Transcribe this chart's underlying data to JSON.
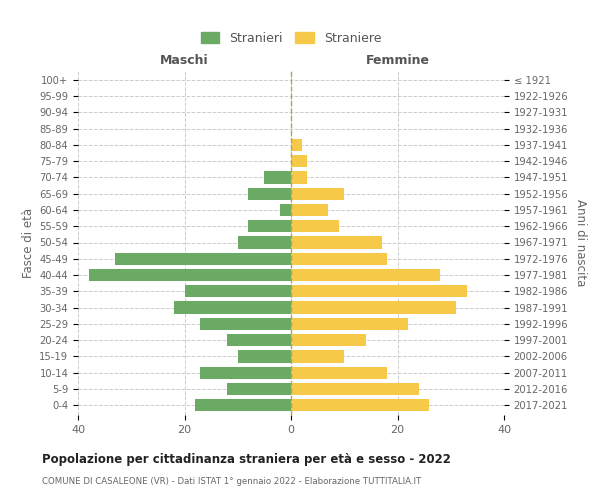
{
  "age_groups": [
    "100+",
    "95-99",
    "90-94",
    "85-89",
    "80-84",
    "75-79",
    "70-74",
    "65-69",
    "60-64",
    "55-59",
    "50-54",
    "45-49",
    "40-44",
    "35-39",
    "30-34",
    "25-29",
    "20-24",
    "15-19",
    "10-14",
    "5-9",
    "0-4"
  ],
  "birth_years": [
    "≤ 1921",
    "1922-1926",
    "1927-1931",
    "1932-1936",
    "1937-1941",
    "1942-1946",
    "1947-1951",
    "1952-1956",
    "1957-1961",
    "1962-1966",
    "1967-1971",
    "1972-1976",
    "1977-1981",
    "1982-1986",
    "1987-1991",
    "1992-1996",
    "1997-2001",
    "2002-2006",
    "2007-2011",
    "2012-2016",
    "2017-2021"
  ],
  "males": [
    0,
    0,
    0,
    0,
    0,
    0,
    5,
    8,
    2,
    8,
    10,
    33,
    38,
    20,
    22,
    17,
    12,
    10,
    17,
    12,
    18
  ],
  "females": [
    0,
    0,
    0,
    0,
    2,
    3,
    3,
    10,
    7,
    9,
    17,
    18,
    28,
    33,
    31,
    22,
    14,
    10,
    18,
    24,
    26
  ],
  "male_color": "#6aaa64",
  "female_color": "#f7c948",
  "background_color": "#ffffff",
  "grid_color": "#cccccc",
  "title": "Popolazione per cittadinanza straniera per età e sesso - 2022",
  "subtitle": "COMUNE DI CASALEONE (VR) - Dati ISTAT 1° gennaio 2022 - Elaborazione TUTTITALIA.IT",
  "xlabel_left": "Maschi",
  "xlabel_right": "Femmine",
  "ylabel_left": "Fasce di età",
  "ylabel_right": "Anni di nascita",
  "legend_male": "Stranieri",
  "legend_female": "Straniere",
  "xlim": 40
}
